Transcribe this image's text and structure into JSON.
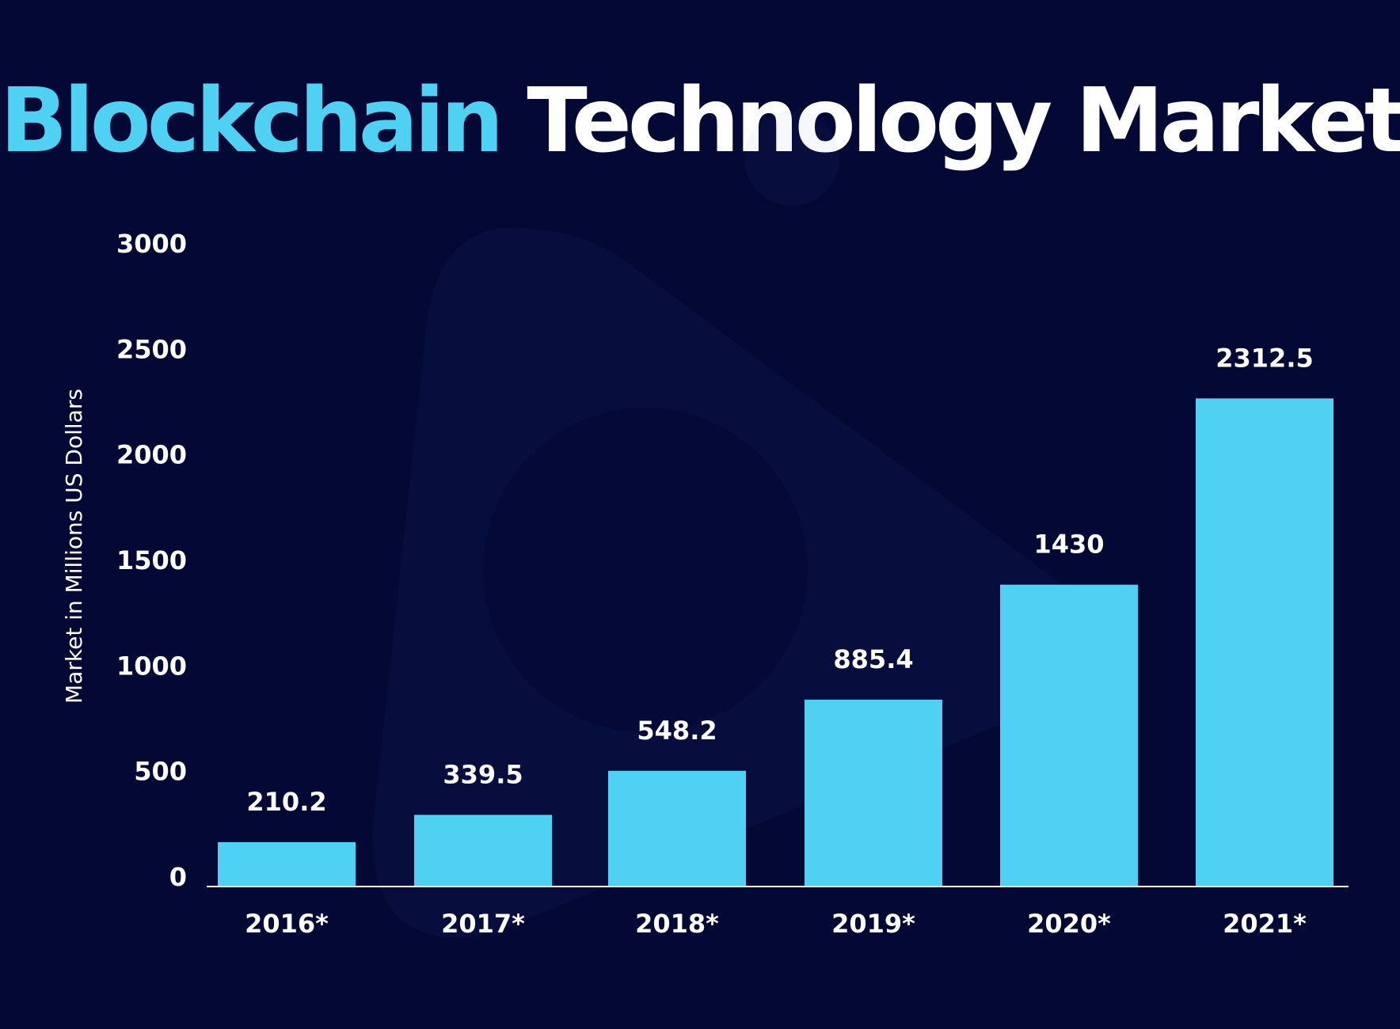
{
  "title": {
    "highlight": "Blockchain",
    "rest": "Technology Market"
  },
  "colors": {
    "background": "#030834",
    "accent": "#4fd1f3",
    "text": "#ffffff"
  },
  "chart_data": {
    "type": "bar",
    "ylabel": "Market in Millions US Dollars",
    "xlabel": "",
    "categories": [
      "2016*",
      "2017*",
      "2018*",
      "2019*",
      "2020*",
      "2021*"
    ],
    "values": [
      210.2,
      339.5,
      548.2,
      885.4,
      1430,
      2312.5
    ],
    "value_labels": [
      "210.2",
      "339.5",
      "548.2",
      "885.4",
      "1430",
      "2312.5"
    ],
    "yticks": [
      0,
      500,
      1000,
      1500,
      2000,
      2500,
      3000
    ],
    "ylim": [
      0,
      3000
    ],
    "grid": false,
    "legend": "none"
  }
}
